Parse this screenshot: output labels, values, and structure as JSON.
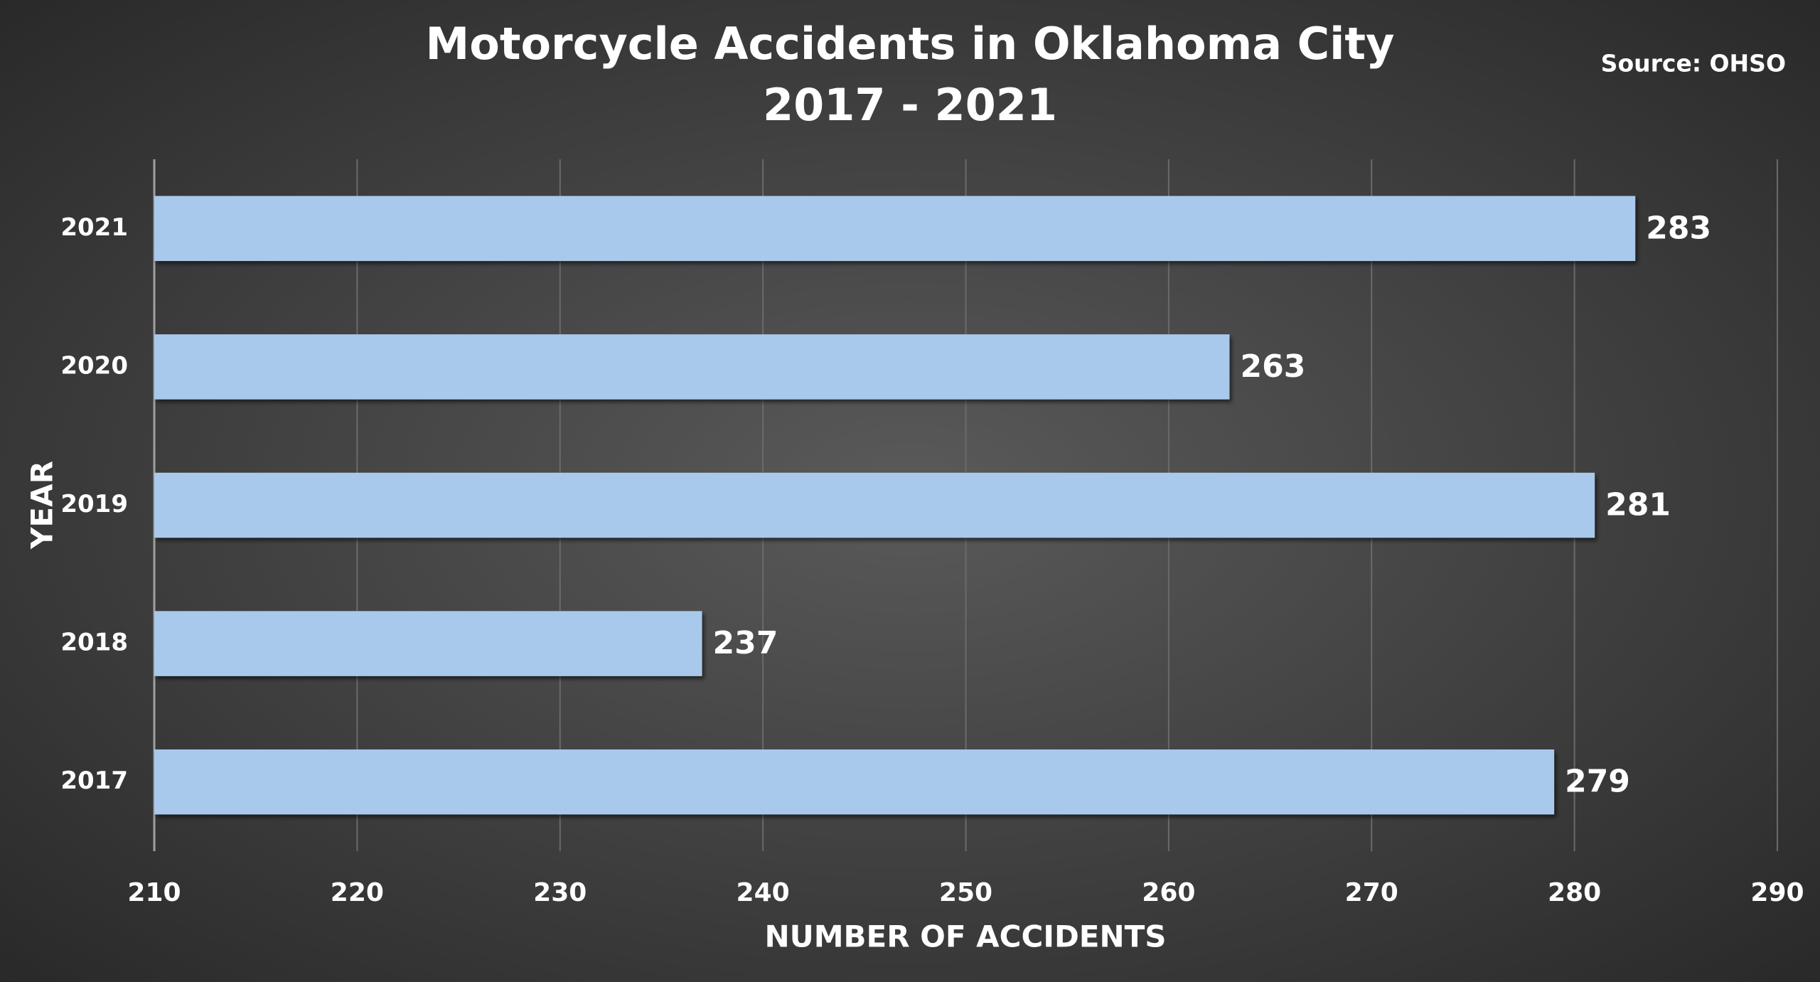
{
  "chart_data": {
    "type": "bar",
    "orientation": "horizontal",
    "title": "Motorcycle Accidents in Oklahoma City",
    "subtitle": "2017 - 2021",
    "annotation": "Source: OHSO",
    "x_label": "NUMBER OF ACCIDENTS",
    "y_label": "YEAR",
    "categories": [
      "2021",
      "2020",
      "2019",
      "2018",
      "2017"
    ],
    "values": [
      283,
      263,
      281,
      237,
      279
    ],
    "color": "#a9c9ec",
    "xlim": [
      210,
      290
    ],
    "xticks": [
      210,
      220,
      230,
      240,
      250,
      260,
      270,
      280,
      290
    ],
    "grid": true
  }
}
